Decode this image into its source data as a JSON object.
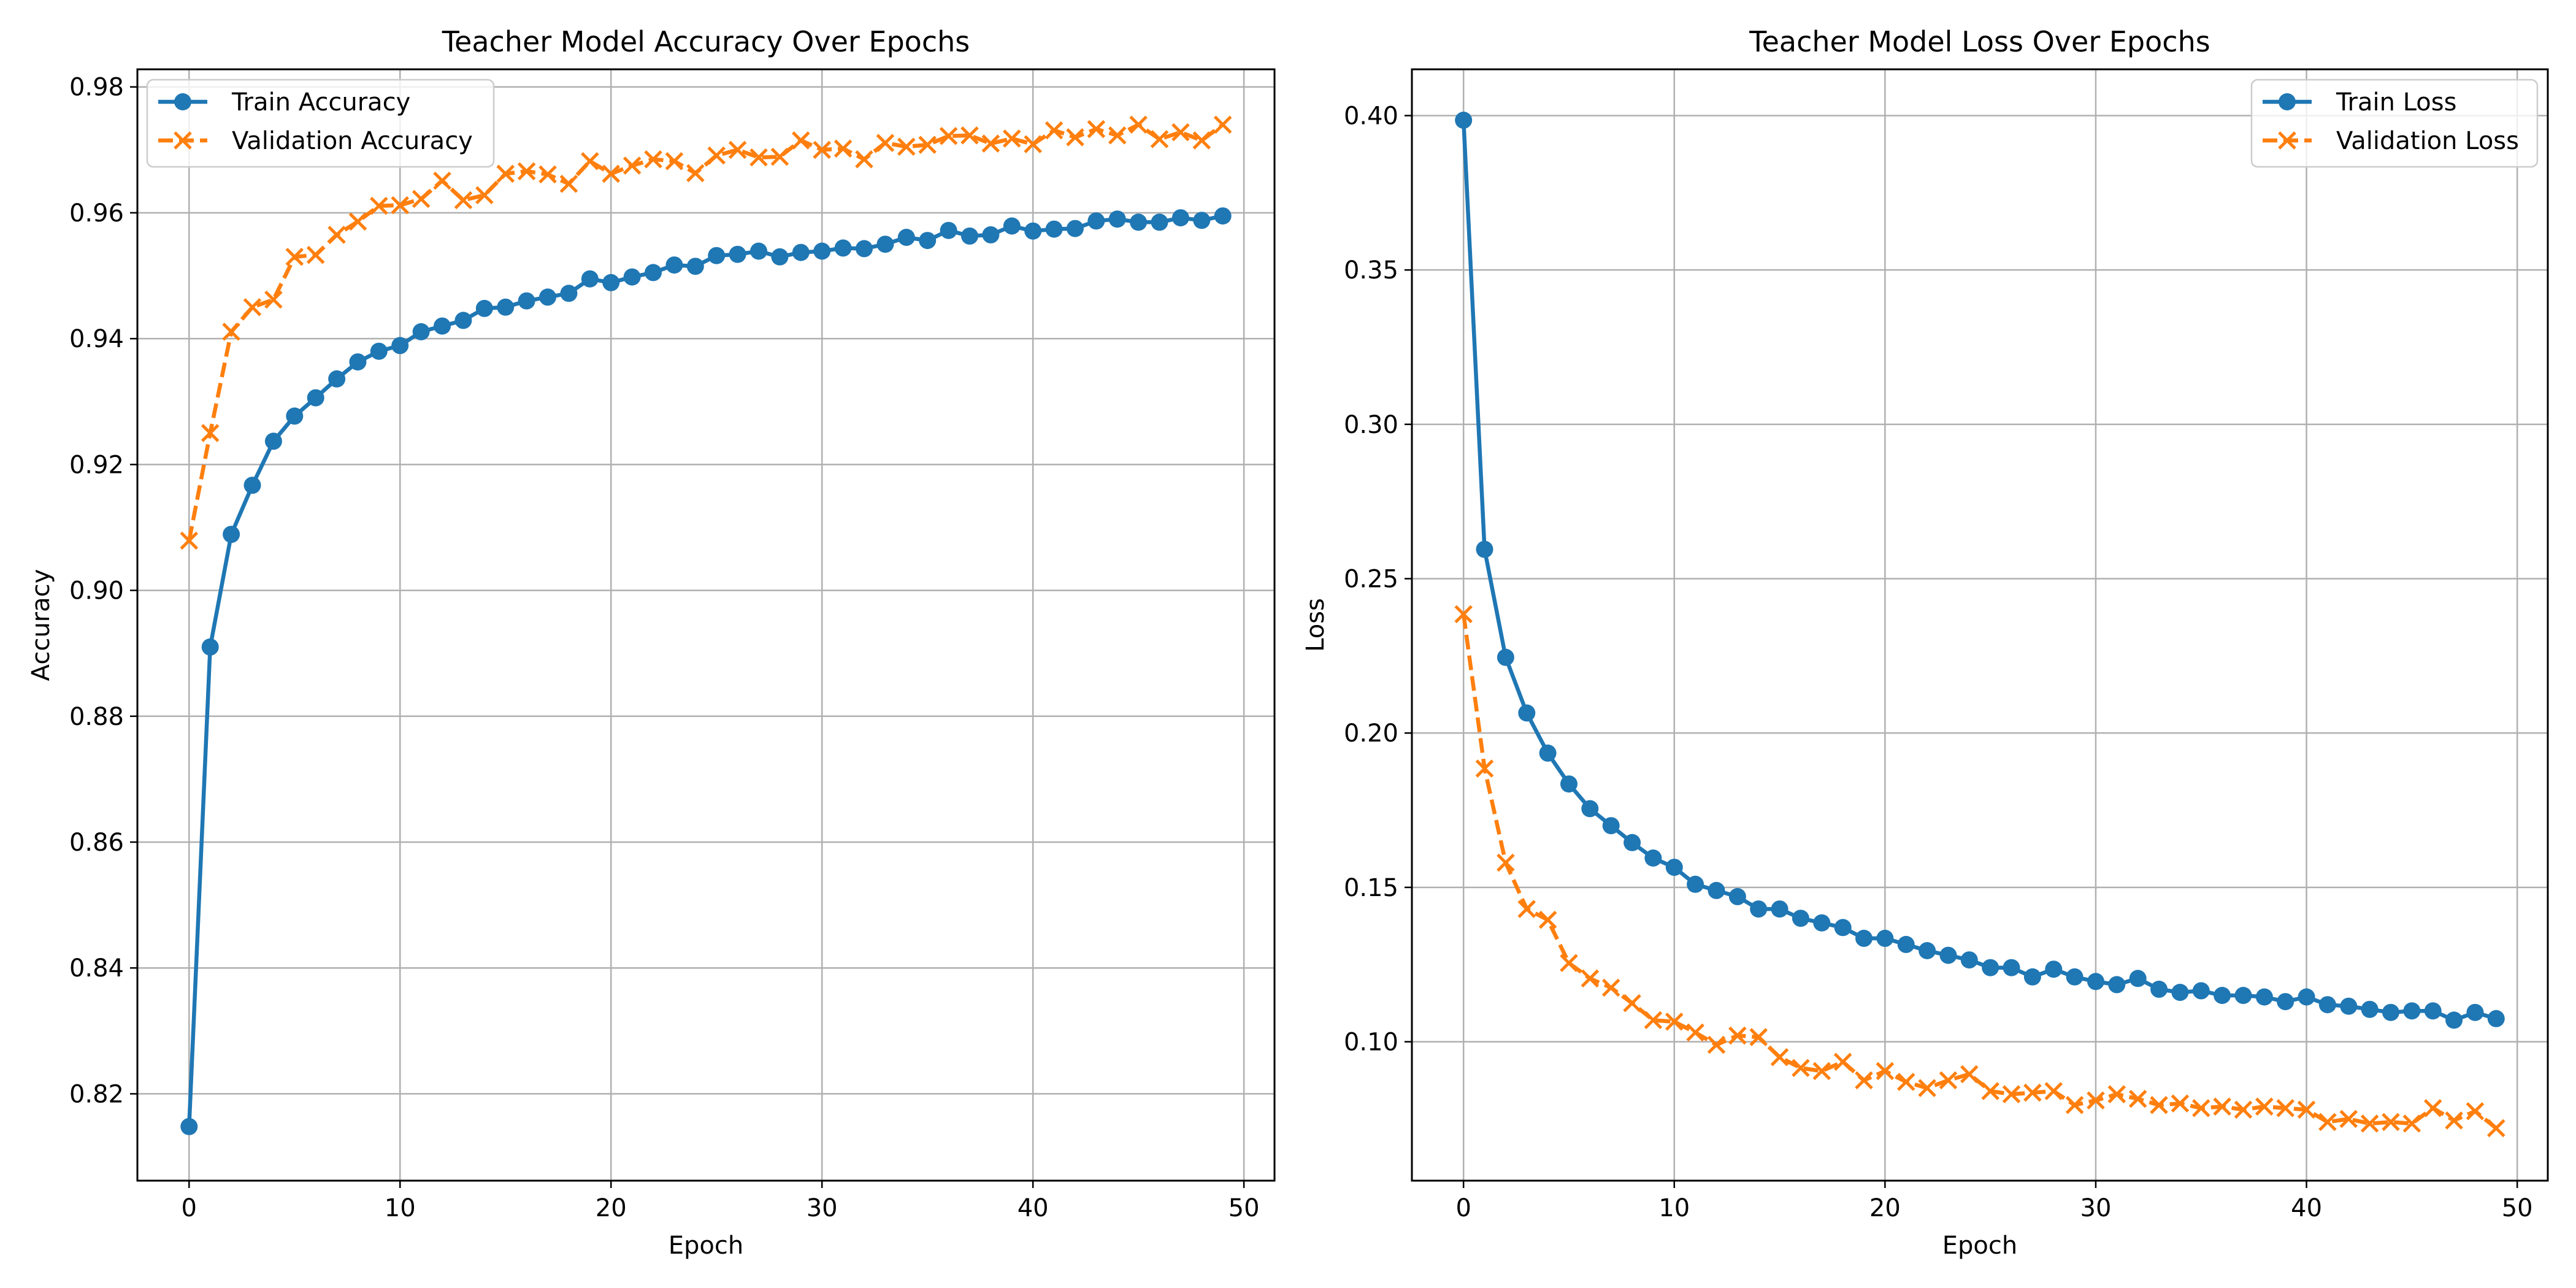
{
  "colors": {
    "train": "#1f77b4",
    "validation": "#ff7f0e",
    "grid": "#b0b0b0",
    "axes": "#000000"
  },
  "chart_data": [
    {
      "type": "line",
      "title": "Teacher Model Accuracy Over Epochs",
      "xlabel": "Epoch",
      "ylabel": "Accuracy",
      "xlim": [
        -2.45,
        51.45
      ],
      "ylim": [
        0.8062,
        0.9828
      ],
      "xticks": [
        0,
        10,
        20,
        30,
        40,
        50
      ],
      "xtick_labels": [
        "0",
        "10",
        "20",
        "30",
        "40",
        "50"
      ],
      "yticks": [
        0.82,
        0.84,
        0.86,
        0.88,
        0.9,
        0.92,
        0.94,
        0.96,
        0.98
      ],
      "ytick_labels": [
        "0.82",
        "0.84",
        "0.86",
        "0.88",
        "0.90",
        "0.92",
        "0.94",
        "0.96",
        "0.98"
      ],
      "grid": true,
      "legend_position": "upper-left",
      "x": [
        0,
        1,
        2,
        3,
        4,
        5,
        6,
        7,
        8,
        9,
        10,
        11,
        12,
        13,
        14,
        15,
        16,
        17,
        18,
        19,
        20,
        21,
        22,
        23,
        24,
        25,
        26,
        27,
        28,
        29,
        30,
        31,
        32,
        33,
        34,
        35,
        36,
        37,
        38,
        39,
        40,
        41,
        42,
        43,
        44,
        45,
        46,
        47,
        48,
        49
      ],
      "series": [
        {
          "name": "Train Accuracy",
          "marker": "circle",
          "line_style": "solid",
          "color": "#1f77b4",
          "values": [
            0.8148,
            0.891,
            0.9089,
            0.9167,
            0.9237,
            0.9277,
            0.9306,
            0.9336,
            0.9363,
            0.938,
            0.9389,
            0.9411,
            0.942,
            0.9429,
            0.9448,
            0.945,
            0.946,
            0.9466,
            0.9472,
            0.9495,
            0.9489,
            0.9498,
            0.9505,
            0.9517,
            0.9515,
            0.9532,
            0.9534,
            0.9539,
            0.953,
            0.9537,
            0.9539,
            0.9544,
            0.9543,
            0.955,
            0.9561,
            0.9556,
            0.9572,
            0.9563,
            0.9565,
            0.9579,
            0.9571,
            0.9574,
            0.9575,
            0.9587,
            0.959,
            0.9585,
            0.9585,
            0.9592,
            0.9588,
            0.9595
          ]
        },
        {
          "name": "Validation Accuracy",
          "marker": "x",
          "line_style": "dashed",
          "color": "#ff7f0e",
          "values": [
            0.9079,
            0.925,
            0.9411,
            0.945,
            0.9462,
            0.953,
            0.9533,
            0.9565,
            0.9586,
            0.9611,
            0.9612,
            0.9622,
            0.9651,
            0.962,
            0.9628,
            0.9662,
            0.9666,
            0.9661,
            0.9646,
            0.9682,
            0.9662,
            0.9675,
            0.9685,
            0.9682,
            0.9663,
            0.9691,
            0.97,
            0.9688,
            0.9689,
            0.9715,
            0.97,
            0.9702,
            0.9685,
            0.9711,
            0.9705,
            0.9708,
            0.9722,
            0.9723,
            0.971,
            0.9718,
            0.9709,
            0.9731,
            0.972,
            0.9733,
            0.9723,
            0.974,
            0.9717,
            0.9728,
            0.9715,
            0.974
          ]
        }
      ]
    },
    {
      "type": "line",
      "title": "Teacher Model Loss Over Epochs",
      "xlabel": "Epoch",
      "ylabel": "Loss",
      "xlim": [
        -2.45,
        51.45
      ],
      "ylim": [
        0.055,
        0.415
      ],
      "xticks": [
        0,
        10,
        20,
        30,
        40,
        50
      ],
      "xtick_labels": [
        "0",
        "10",
        "20",
        "30",
        "40",
        "50"
      ],
      "yticks": [
        0.1,
        0.15,
        0.2,
        0.25,
        0.3,
        0.35,
        0.4
      ],
      "ytick_labels": [
        "0.10",
        "0.15",
        "0.20",
        "0.25",
        "0.30",
        "0.35",
        "0.40"
      ],
      "grid": true,
      "legend_position": "upper-right",
      "x": [
        0,
        1,
        2,
        3,
        4,
        5,
        6,
        7,
        8,
        9,
        10,
        11,
        12,
        13,
        14,
        15,
        16,
        17,
        18,
        19,
        20,
        21,
        22,
        23,
        24,
        25,
        26,
        27,
        28,
        29,
        30,
        31,
        32,
        33,
        34,
        35,
        36,
        37,
        38,
        39,
        40,
        41,
        42,
        43,
        44,
        45,
        46,
        47,
        48,
        49
      ],
      "series": [
        {
          "name": "Train Loss",
          "marker": "circle",
          "line_style": "solid",
          "color": "#1f77b4",
          "values": [
            0.3985,
            0.2595,
            0.2245,
            0.2065,
            0.1935,
            0.1835,
            0.1755,
            0.17,
            0.1645,
            0.1595,
            0.1565,
            0.151,
            0.149,
            0.147,
            0.143,
            0.143,
            0.14,
            0.1385,
            0.137,
            0.1335,
            0.1335,
            0.1315,
            0.1295,
            0.128,
            0.1265,
            0.124,
            0.124,
            0.121,
            0.1235,
            0.121,
            0.1195,
            0.1185,
            0.1205,
            0.117,
            0.116,
            0.1165,
            0.115,
            0.115,
            0.1145,
            0.113,
            0.1145,
            0.112,
            0.1115,
            0.1105,
            0.1095,
            0.11,
            0.11,
            0.107,
            0.1095,
            0.1075
          ]
        },
        {
          "name": "Validation Loss",
          "marker": "x",
          "line_style": "dashed",
          "color": "#ff7f0e",
          "values": [
            0.2385,
            0.1885,
            0.158,
            0.143,
            0.1395,
            0.1255,
            0.1205,
            0.1175,
            0.1125,
            0.107,
            0.1065,
            0.103,
            0.099,
            0.102,
            0.1015,
            0.095,
            0.0915,
            0.0905,
            0.0935,
            0.0875,
            0.0905,
            0.087,
            0.085,
            0.0875,
            0.0895,
            0.084,
            0.083,
            0.0835,
            0.084,
            0.0795,
            0.081,
            0.083,
            0.0815,
            0.0795,
            0.08,
            0.0785,
            0.079,
            0.078,
            0.079,
            0.0785,
            0.078,
            0.074,
            0.075,
            0.0735,
            0.074,
            0.0735,
            0.0785,
            0.0745,
            0.0775,
            0.072
          ]
        }
      ]
    }
  ]
}
